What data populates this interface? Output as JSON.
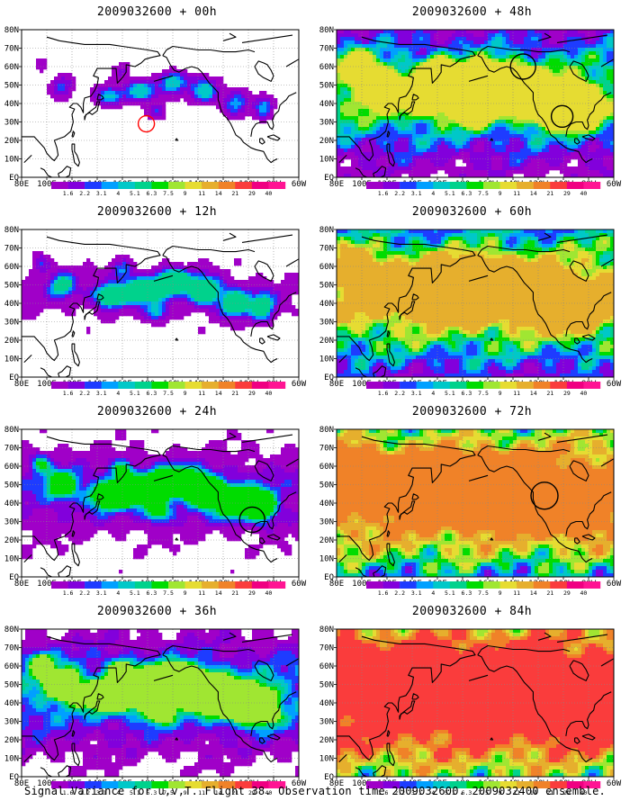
{
  "caption": "Signal Variance for u,v,T. Flight 38. Observation time 2009032600. 2009032400 ensemble.",
  "lon_labels": [
    "80E",
    "100E",
    "120E",
    "140E",
    "160E",
    "180",
    "160W",
    "140W",
    "120W",
    "100W",
    "80W",
    "60W"
  ],
  "lat_labels": [
    "80N",
    "70N",
    "60N",
    "50N",
    "40N",
    "30N",
    "20N",
    "10N",
    "EQ"
  ],
  "colorbar": {
    "labels": [
      "1.6",
      "2.2",
      "3.1",
      "4",
      "5.1",
      "6.3",
      "7.5",
      "9",
      "11",
      "14",
      "21",
      "29",
      "40"
    ],
    "colors": [
      "#a000c8",
      "#8200dc",
      "#1e3cff",
      "#00a0ff",
      "#00c8c8",
      "#00d28c",
      "#00dc00",
      "#a0e632",
      "#e6dc32",
      "#e6af2d",
      "#f08228",
      "#fa3c3c",
      "#f00082"
    ]
  },
  "panels": [
    {
      "title": "2009032600 + 00h",
      "level": 1,
      "circles": [
        {
          "lon": 179,
          "lat": 29,
          "r": 9,
          "color": "#ff0000"
        }
      ]
    },
    {
      "title": "2009032600 + 12h",
      "level": 2,
      "circles": []
    },
    {
      "title": "2009032600 + 24h",
      "level": 3,
      "circles": [
        {
          "lon": -97,
          "lat": 31,
          "r": 14,
          "color": "#000000"
        }
      ]
    },
    {
      "title": "2009032600 + 36h",
      "level": 4,
      "circles": []
    },
    {
      "title": "2009032600 + 48h",
      "level": 5,
      "circles": [
        {
          "lon": -132,
          "lat": 60,
          "r": 14,
          "color": "#000000"
        },
        {
          "lon": -101,
          "lat": 33,
          "r": 12,
          "color": "#000000"
        }
      ]
    },
    {
      "title": "2009032600 + 60h",
      "level": 6,
      "circles": []
    },
    {
      "title": "2009032600 + 72h",
      "level": 7,
      "circles": [
        {
          "lon": -115,
          "lat": 44,
          "r": 15,
          "color": "#000000"
        }
      ]
    },
    {
      "title": "2009032600 + 84h",
      "level": 8,
      "circles": []
    }
  ]
}
